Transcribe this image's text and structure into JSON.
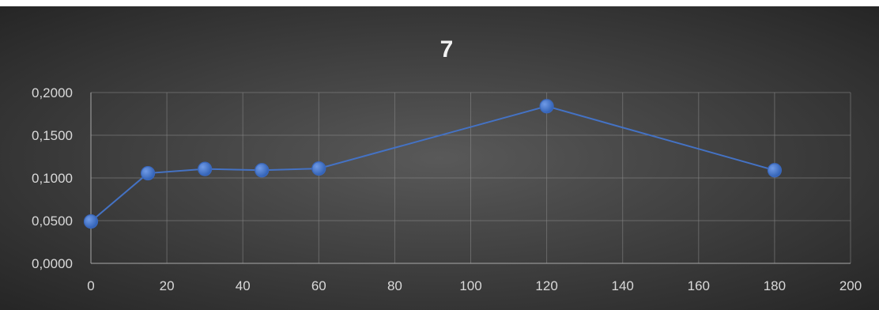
{
  "chart_data": {
    "type": "scatter",
    "title": "7",
    "xlabel": "",
    "ylabel": "",
    "xlim": [
      0,
      200
    ],
    "ylim": [
      0,
      0.2
    ],
    "x_ticks": [
      0,
      20,
      40,
      60,
      80,
      100,
      120,
      140,
      160,
      180,
      200
    ],
    "y_ticks": [
      0,
      0.05,
      0.1,
      0.15,
      0.2
    ],
    "x_tick_labels": [
      "0",
      "20",
      "40",
      "60",
      "80",
      "100",
      "120",
      "140",
      "160",
      "180",
      "200"
    ],
    "y_tick_labels": [
      "0,0000",
      "0,0500",
      "0,1000",
      "0,1500",
      "0,2000"
    ],
    "grid": true,
    "legend": "none",
    "series": [
      {
        "color": "#4472c4",
        "line": true,
        "markers": true,
        "points": [
          {
            "x": 0,
            "y": 0.049
          },
          {
            "x": 15,
            "y": 0.1055
          },
          {
            "x": 30,
            "y": 0.1105
          },
          {
            "x": 45,
            "y": 0.109
          },
          {
            "x": 60,
            "y": 0.111
          },
          {
            "x": 120,
            "y": 0.184
          },
          {
            "x": 180,
            "y": 0.109
          }
        ]
      }
    ],
    "background_colors": [
      "#5a5a5a",
      "#262626"
    ]
  }
}
